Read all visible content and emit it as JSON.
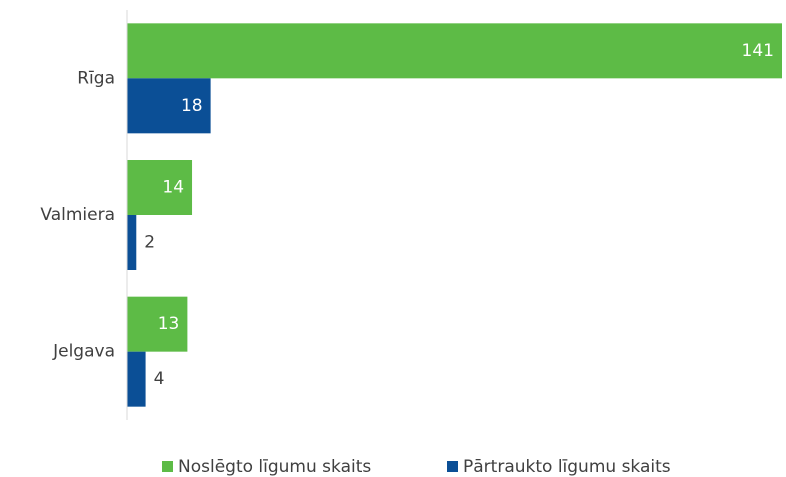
{
  "chart_data": {
    "type": "hbar",
    "categories": [
      "Rīga",
      "Valmiera",
      "Jelgava"
    ],
    "series": [
      {
        "name": "Noslēgto līgumu skaits",
        "color": "#5dbb46",
        "values": [
          141,
          14,
          13
        ]
      },
      {
        "name": "Pārtraukto līgumu skaits",
        "color": "#0b4f96",
        "values": [
          18,
          2,
          4
        ]
      }
    ],
    "xlim": [
      0,
      141
    ],
    "legend": "bottom"
  }
}
